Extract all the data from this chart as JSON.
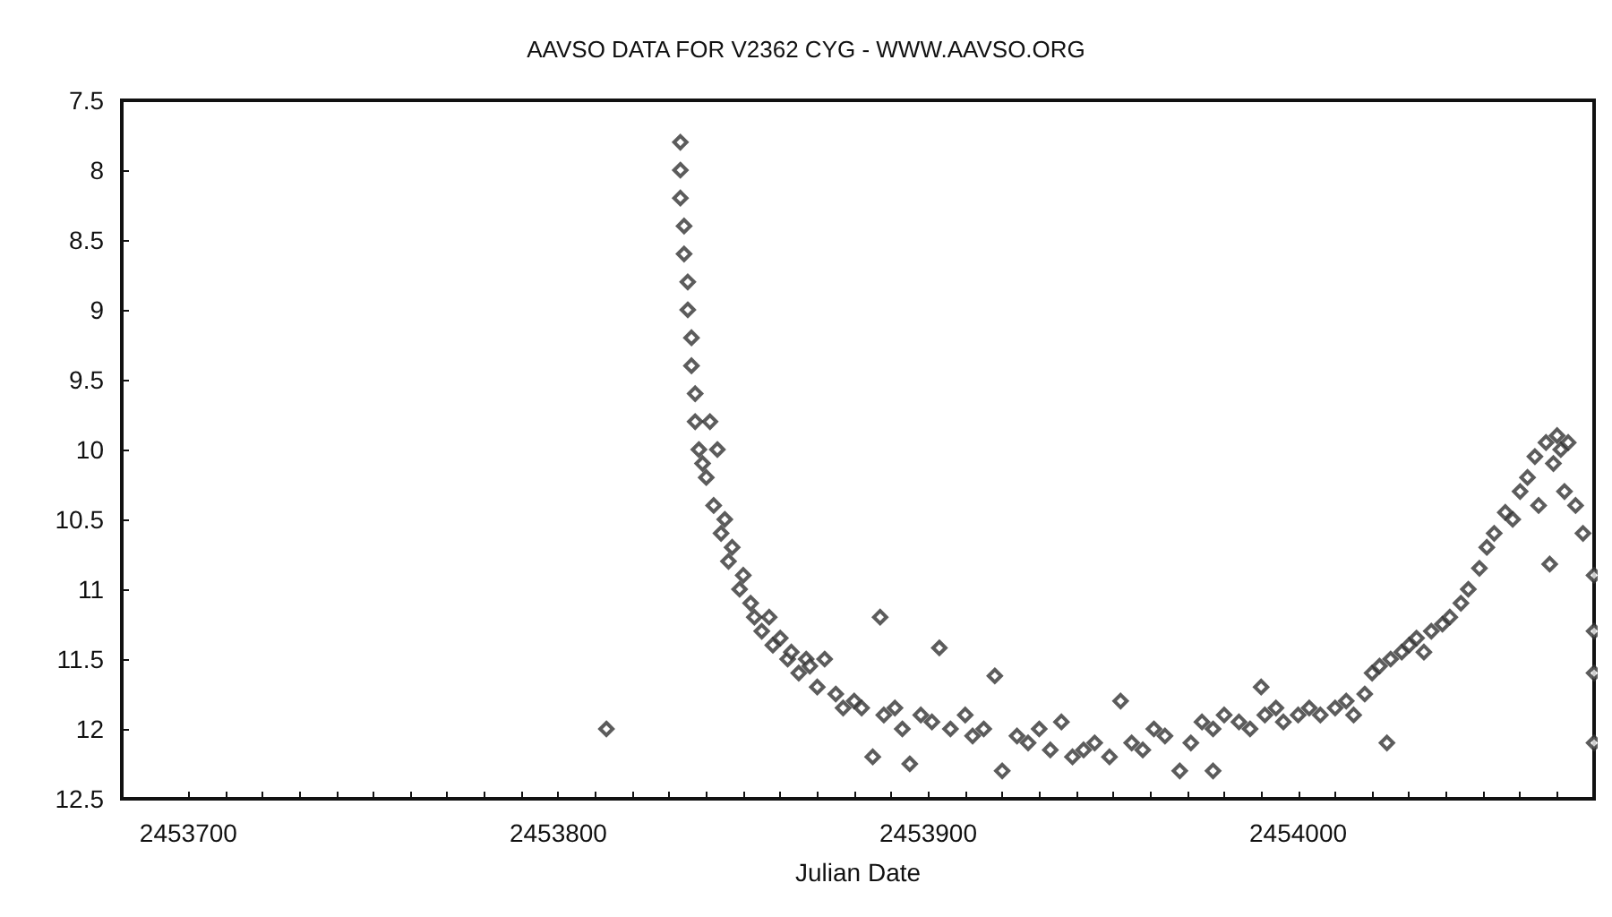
{
  "chart_data": {
    "type": "scatter",
    "title": "AAVSO DATA FOR V2362 CYG - WWW.AAVSO.ORG",
    "xlabel": "Julian Date",
    "marker": "diamond",
    "xlim": [
      2453682,
      2454080
    ],
    "ylim": [
      12.5,
      7.5
    ],
    "xticks": [
      2453700,
      {
        "value": 2453710,
        "label": null
      },
      {
        "value": 2453720,
        "label": null
      },
      {
        "value": 2453730,
        "label": null
      },
      {
        "value": 2453740,
        "label": null
      },
      {
        "value": 2453750,
        "label": null
      },
      {
        "value": 2453760,
        "label": null
      },
      {
        "value": 2453770,
        "label": null
      },
      {
        "value": 2453780,
        "label": null
      },
      {
        "value": 2453790,
        "label": null
      },
      2453800,
      {
        "value": 2453810,
        "label": null
      },
      {
        "value": 2453820,
        "label": null
      },
      {
        "value": 2453830,
        "label": null
      },
      {
        "value": 2453840,
        "label": null
      },
      {
        "value": 2453850,
        "label": null
      },
      {
        "value": 2453860,
        "label": null
      },
      {
        "value": 2453870,
        "label": null
      },
      {
        "value": 2453880,
        "label": null
      },
      {
        "value": 2453890,
        "label": null
      },
      2453900,
      {
        "value": 2453910,
        "label": null
      },
      {
        "value": 2453920,
        "label": null
      },
      {
        "value": 2453930,
        "label": null
      },
      {
        "value": 2453940,
        "label": null
      },
      {
        "value": 2453950,
        "label": null
      },
      {
        "value": 2453960,
        "label": null
      },
      {
        "value": 2453970,
        "label": null
      },
      {
        "value": 2453980,
        "label": null
      },
      {
        "value": 2453990,
        "label": null
      },
      2454000,
      {
        "value": 2454010,
        "label": null
      },
      {
        "value": 2454020,
        "label": null
      },
      {
        "value": 2454030,
        "label": null
      },
      {
        "value": 2454040,
        "label": null
      },
      {
        "value": 2454050,
        "label": null
      },
      {
        "value": 2454060,
        "label": null
      },
      {
        "value": 2454070,
        "label": null
      }
    ],
    "yticks": [
      7.5,
      8,
      8.5,
      9,
      9.5,
      10,
      10.5,
      11,
      11.5,
      12,
      12.5
    ],
    "series": [
      {
        "color": "#333333",
        "x": [
          2453813,
          2453833,
          2453833,
          2453833,
          2453834,
          2453834,
          2453835,
          2453835,
          2453836,
          2453836,
          2453837,
          2453837,
          2453838,
          2453839,
          2453840,
          2453841,
          2453842,
          2453843,
          2453844,
          2453845,
          2453846,
          2453847,
          2453849,
          2453850,
          2453852,
          2453853,
          2453855,
          2453857,
          2453858,
          2453860,
          2453862,
          2453863,
          2453865,
          2453867,
          2453868,
          2453870,
          2453872,
          2453875,
          2453877,
          2453880,
          2453882,
          2453885,
          2453887,
          2453888,
          2453891,
          2453893,
          2453895,
          2453898,
          2453901,
          2453903,
          2453906,
          2453910,
          2453912,
          2453915,
          2453918,
          2453920,
          2453924,
          2453927,
          2453930,
          2453933,
          2453936,
          2453939,
          2453942,
          2453945,
          2453949,
          2453952,
          2453955,
          2453958,
          2453961,
          2453964,
          2453968,
          2453971,
          2453974,
          2453977,
          2453977,
          2453980,
          2453984,
          2453987,
          2453990,
          2453991,
          2453994,
          2453996,
          2454000,
          2454003,
          2454006,
          2454010,
          2454013,
          2454015,
          2454018,
          2454020,
          2454022,
          2454024,
          2454025,
          2454028,
          2454030,
          2454032,
          2454034,
          2454036,
          2454039,
          2454041,
          2454044,
          2454046,
          2454049,
          2454051,
          2454053,
          2454056,
          2454058,
          2454060,
          2454062,
          2454064,
          2454065,
          2454067,
          2454068,
          2454069,
          2454070,
          2454071,
          2454072,
          2454073,
          2454075,
          2454077,
          2454080,
          2454080,
          2454080,
          2454080
        ],
        "values": [
          12.0,
          7.8,
          8.0,
          8.2,
          8.4,
          8.6,
          8.8,
          9.0,
          9.2,
          9.4,
          9.6,
          9.8,
          10.0,
          10.1,
          10.2,
          9.8,
          10.4,
          10.0,
          10.6,
          10.5,
          10.8,
          10.7,
          11.0,
          10.9,
          11.1,
          11.2,
          11.3,
          11.2,
          11.4,
          11.35,
          11.5,
          11.45,
          11.6,
          11.5,
          11.55,
          11.7,
          11.5,
          11.75,
          11.85,
          11.8,
          11.85,
          12.2,
          11.2,
          11.9,
          11.85,
          12.0,
          12.25,
          11.9,
          11.95,
          11.42,
          12.0,
          11.9,
          12.05,
          12.0,
          11.62,
          12.3,
          12.05,
          12.1,
          12.0,
          12.15,
          11.95,
          12.2,
          12.15,
          12.1,
          12.2,
          11.8,
          12.1,
          12.15,
          12.0,
          12.05,
          12.3,
          12.1,
          11.95,
          12.0,
          12.3,
          11.9,
          11.95,
          12.0,
          11.7,
          11.9,
          11.85,
          11.95,
          11.9,
          11.85,
          11.9,
          11.85,
          11.8,
          11.9,
          11.75,
          11.6,
          11.55,
          12.1,
          11.5,
          11.45,
          11.4,
          11.35,
          11.45,
          11.3,
          11.25,
          11.2,
          11.1,
          11.0,
          10.85,
          10.7,
          10.6,
          10.45,
          10.5,
          10.3,
          10.2,
          10.05,
          10.4,
          9.95,
          10.82,
          10.1,
          9.9,
          10.0,
          10.3,
          9.95,
          10.4,
          10.6,
          10.9,
          11.3,
          11.6,
          12.1
        ]
      }
    ]
  }
}
